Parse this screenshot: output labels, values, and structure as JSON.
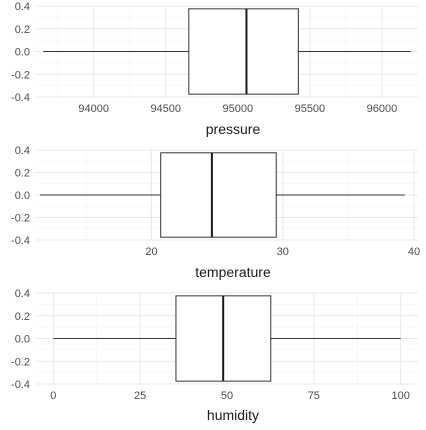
{
  "chart_data": [
    {
      "type": "boxplot",
      "xlabel": "pressure",
      "ylim": [
        -0.4,
        0.4
      ],
      "yticks": [
        "0.4",
        "0.2",
        "0.0",
        "-0.2",
        "-0.4"
      ],
      "xlim": [
        93600,
        96250
      ],
      "xticks": [
        94000,
        94500,
        95000,
        95500,
        96000
      ],
      "stats": {
        "min": 93650,
        "q1": 94660,
        "median": 95060,
        "q3": 95420,
        "max": 96200
      },
      "grid": true
    },
    {
      "type": "boxplot",
      "xlabel": "temperature",
      "ylim": [
        -0.4,
        0.4
      ],
      "yticks": [
        "0.4",
        "0.2",
        "0.0",
        "-0.2",
        "-0.4"
      ],
      "xlim": [
        11.2,
        40.3
      ],
      "xticks": [
        20,
        30,
        40
      ],
      "stats": {
        "min": 11.5,
        "q1": 20.7,
        "median": 24.6,
        "q3": 29.5,
        "max": 39.3
      },
      "grid": true
    },
    {
      "type": "boxplot",
      "xlabel": "humidity",
      "ylim": [
        -0.4,
        0.4
      ],
      "yticks": [
        "0.4",
        "0.2",
        "0.0",
        "-0.2",
        "-0.4"
      ],
      "xlim": [
        -5,
        105
      ],
      "xticks": [
        0,
        25,
        50,
        75,
        100
      ],
      "stats": {
        "min": 0,
        "q1": 35.3,
        "median": 48.9,
        "q3": 62.6,
        "max": 100
      },
      "grid": true
    }
  ]
}
